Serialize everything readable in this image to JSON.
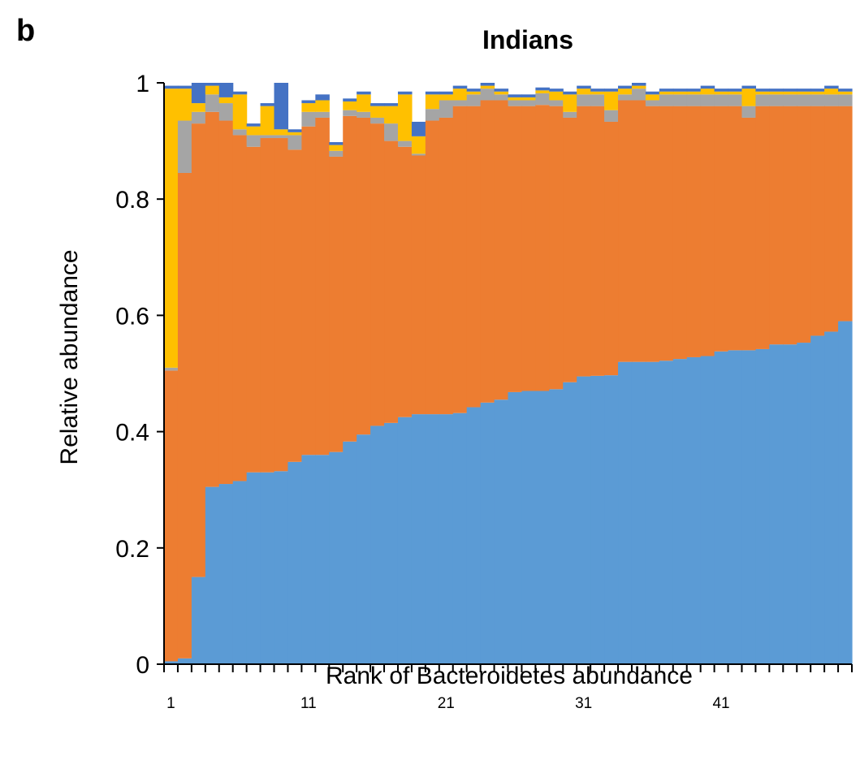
{
  "panel_label": "b",
  "chart_data": {
    "type": "bar",
    "stacked": true,
    "title": "Indians",
    "xlabel": "Rank of Bacteroidetes abundance",
    "ylabel": "Relative abundance",
    "ylim": [
      0,
      1
    ],
    "y_ticks": [
      0,
      0.2,
      0.4,
      0.6,
      0.8,
      1
    ],
    "y_tick_labels": [
      "0",
      "0.2",
      "0.4",
      "0.6",
      "0.8",
      "1"
    ],
    "x": [
      1,
      2,
      3,
      4,
      5,
      6,
      7,
      8,
      9,
      10,
      11,
      12,
      13,
      14,
      15,
      16,
      17,
      18,
      19,
      20,
      21,
      22,
      23,
      24,
      25,
      26,
      27,
      28,
      29,
      30,
      31,
      32,
      33,
      34,
      35,
      36,
      37,
      38,
      39,
      40,
      41,
      42,
      43,
      44,
      45,
      46,
      47,
      48,
      49,
      50
    ],
    "x_tick_labels": [
      {
        "x": 1,
        "label": "1"
      },
      {
        "x": 11,
        "label": "11"
      },
      {
        "x": 21,
        "label": "21"
      },
      {
        "x": 31,
        "label": "31"
      },
      {
        "x": 41,
        "label": "41"
      }
    ],
    "grid": false,
    "legend": "none",
    "series": [
      {
        "color": "#5b9bd5",
        "values": [
          0.005,
          0.01,
          0.15,
          0.305,
          0.31,
          0.315,
          0.33,
          0.33,
          0.332,
          0.348,
          0.36,
          0.36,
          0.365,
          0.383,
          0.395,
          0.41,
          0.415,
          0.425,
          0.43,
          0.43,
          0.43,
          0.432,
          0.442,
          0.45,
          0.455,
          0.468,
          0.47,
          0.47,
          0.473,
          0.485,
          0.495,
          0.496,
          0.497,
          0.52,
          0.52,
          0.52,
          0.522,
          0.525,
          0.528,
          0.53,
          0.538,
          0.54,
          0.54,
          0.542,
          0.55,
          0.55,
          0.553,
          0.565,
          0.572,
          0.59
        ]
      },
      {
        "color": "#ed7d31",
        "values": [
          0.5,
          0.835,
          0.78,
          0.645,
          0.625,
          0.595,
          0.56,
          0.575,
          0.573,
          0.537,
          0.565,
          0.58,
          0.508,
          0.56,
          0.545,
          0.52,
          0.485,
          0.465,
          0.445,
          0.505,
          0.51,
          0.528,
          0.518,
          0.52,
          0.515,
          0.492,
          0.49,
          0.492,
          0.487,
          0.455,
          0.465,
          0.464,
          0.436,
          0.45,
          0.45,
          0.44,
          0.438,
          0.435,
          0.432,
          0.43,
          0.422,
          0.42,
          0.4,
          0.418,
          0.41,
          0.41,
          0.407,
          0.395,
          0.388,
          0.37
        ]
      },
      {
        "color": "#a5a5a5",
        "values": [
          0.005,
          0.09,
          0.02,
          0.03,
          0.03,
          0.01,
          0.02,
          0.005,
          0.005,
          0.025,
          0.025,
          0.01,
          0.01,
          0.01,
          0.01,
          0.01,
          0.03,
          0.01,
          0.003,
          0.02,
          0.03,
          0.01,
          0.02,
          0.02,
          0.01,
          0.01,
          0.01,
          0.02,
          0.01,
          0.01,
          0.02,
          0.02,
          0.02,
          0.01,
          0.02,
          0.01,
          0.02,
          0.02,
          0.02,
          0.02,
          0.02,
          0.02,
          0.02,
          0.02,
          0.02,
          0.02,
          0.02,
          0.02,
          0.02,
          0.02
        ]
      },
      {
        "color": "#ffc000",
        "values": [
          0.48,
          0.055,
          0.015,
          0.015,
          0.01,
          0.06,
          0.015,
          0.05,
          0.01,
          0.005,
          0.015,
          0.02,
          0.01,
          0.015,
          0.03,
          0.02,
          0.03,
          0.08,
          0.03,
          0.025,
          0.01,
          0.02,
          0.005,
          0.005,
          0.005,
          0.005,
          0.005,
          0.005,
          0.015,
          0.03,
          0.01,
          0.005,
          0.032,
          0.01,
          0.005,
          0.01,
          0.005,
          0.005,
          0.005,
          0.01,
          0.005,
          0.005,
          0.03,
          0.005,
          0.005,
          0.005,
          0.005,
          0.005,
          0.01,
          0.005
        ]
      },
      {
        "color": "#4472c4",
        "values": [
          0.005,
          0.005,
          0.035,
          0.005,
          0.025,
          0.005,
          0.005,
          0.005,
          0.08,
          0.005,
          0.005,
          0.01,
          0.005,
          0.005,
          0.005,
          0.005,
          0.005,
          0.005,
          0.025,
          0.005,
          0.005,
          0.005,
          0.005,
          0.005,
          0.005,
          0.005,
          0.005,
          0.005,
          0.005,
          0.005,
          0.005,
          0.005,
          0.005,
          0.005,
          0.005,
          0.005,
          0.005,
          0.005,
          0.005,
          0.005,
          0.005,
          0.005,
          0.005,
          0.005,
          0.005,
          0.005,
          0.005,
          0.005,
          0.005,
          0.005
        ]
      }
    ]
  }
}
